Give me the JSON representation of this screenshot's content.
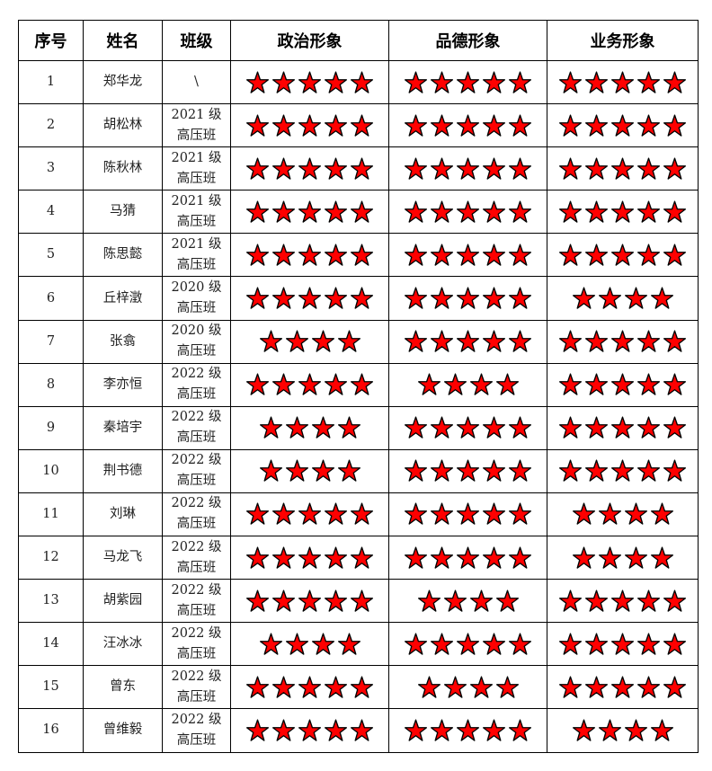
{
  "headers": [
    "序号",
    "姓名",
    "班级",
    "政治形象",
    "品德形象",
    "业务形象"
  ],
  "star_color": "#FF0000",
  "rows": [
    {
      "no": "1",
      "name": "郑华龙",
      "class1": "\\",
      "class2": "",
      "politics": 5,
      "morality": 5,
      "business": 5
    },
    {
      "no": "2",
      "name": "胡松林",
      "class1": "2021 级",
      "class2": "高压班",
      "politics": 5,
      "morality": 5,
      "business": 5
    },
    {
      "no": "3",
      "name": "陈秋林",
      "class1": "2021 级",
      "class2": "高压班",
      "politics": 5,
      "morality": 5,
      "business": 5
    },
    {
      "no": "4",
      "name": "马猜",
      "class1": "2021 级",
      "class2": "高压班",
      "politics": 5,
      "morality": 5,
      "business": 5
    },
    {
      "no": "5",
      "name": "陈思懿",
      "class1": "2021 级",
      "class2": "高压班",
      "politics": 5,
      "morality": 5,
      "business": 5
    },
    {
      "no": "6",
      "name": "丘梓澂",
      "class1": "2020 级",
      "class2": "高压班",
      "politics": 5,
      "morality": 5,
      "business": 4
    },
    {
      "no": "7",
      "name": "张翕",
      "class1": "2020 级",
      "class2": "高压班",
      "politics": 4,
      "morality": 5,
      "business": 5
    },
    {
      "no": "8",
      "name": "李亦恒",
      "class1": "2022 级",
      "class2": "高压班",
      "politics": 5,
      "morality": 4,
      "business": 5
    },
    {
      "no": "9",
      "name": "秦培宇",
      "class1": "2022 级",
      "class2": "高压班",
      "politics": 4,
      "morality": 5,
      "business": 5
    },
    {
      "no": "10",
      "name": "荆书德",
      "class1": "2022 级",
      "class2": "高压班",
      "politics": 4,
      "morality": 5,
      "business": 5
    },
    {
      "no": "11",
      "name": "刘琳",
      "class1": "2022 级",
      "class2": "高压班",
      "politics": 5,
      "morality": 5,
      "business": 4
    },
    {
      "no": "12",
      "name": "马龙飞",
      "class1": "2022 级",
      "class2": "高压班",
      "politics": 5,
      "morality": 5,
      "business": 4
    },
    {
      "no": "13",
      "name": "胡紫园",
      "class1": "2022 级",
      "class2": "高压班",
      "politics": 5,
      "morality": 4,
      "business": 5
    },
    {
      "no": "14",
      "name": "汪冰冰",
      "class1": "2022 级",
      "class2": "高压班",
      "politics": 4,
      "morality": 5,
      "business": 5
    },
    {
      "no": "15",
      "name": "曾东",
      "class1": "2022 级",
      "class2": "高压班",
      "politics": 5,
      "morality": 4,
      "business": 5
    },
    {
      "no": "16",
      "name": "曾维毅",
      "class1": "2022 级",
      "class2": "高压班",
      "politics": 5,
      "morality": 5,
      "business": 4
    }
  ]
}
